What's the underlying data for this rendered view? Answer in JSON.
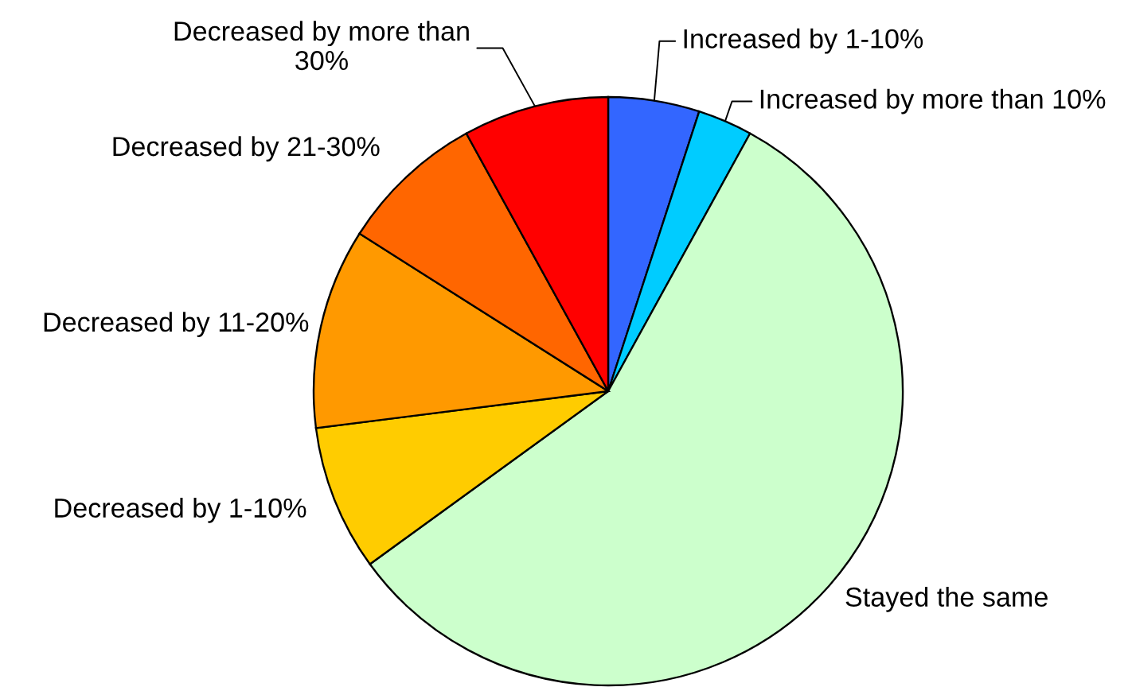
{
  "chart_data": {
    "type": "pie",
    "categories": [
      "Increased by 1-10%",
      "Increased by more than 10%",
      "Stayed the same",
      "Decreased by 1-10%",
      "Decreased by 11-20%",
      "Decreased by 21-30%",
      "Decreased by more than 30%"
    ],
    "values": [
      5,
      3,
      57,
      8,
      11,
      8,
      8
    ],
    "colors": [
      "#3366ff",
      "#00ccff",
      "#ccffcc",
      "#ffcc00",
      "#ff9900",
      "#ff6600",
      "#ff0000"
    ]
  }
}
